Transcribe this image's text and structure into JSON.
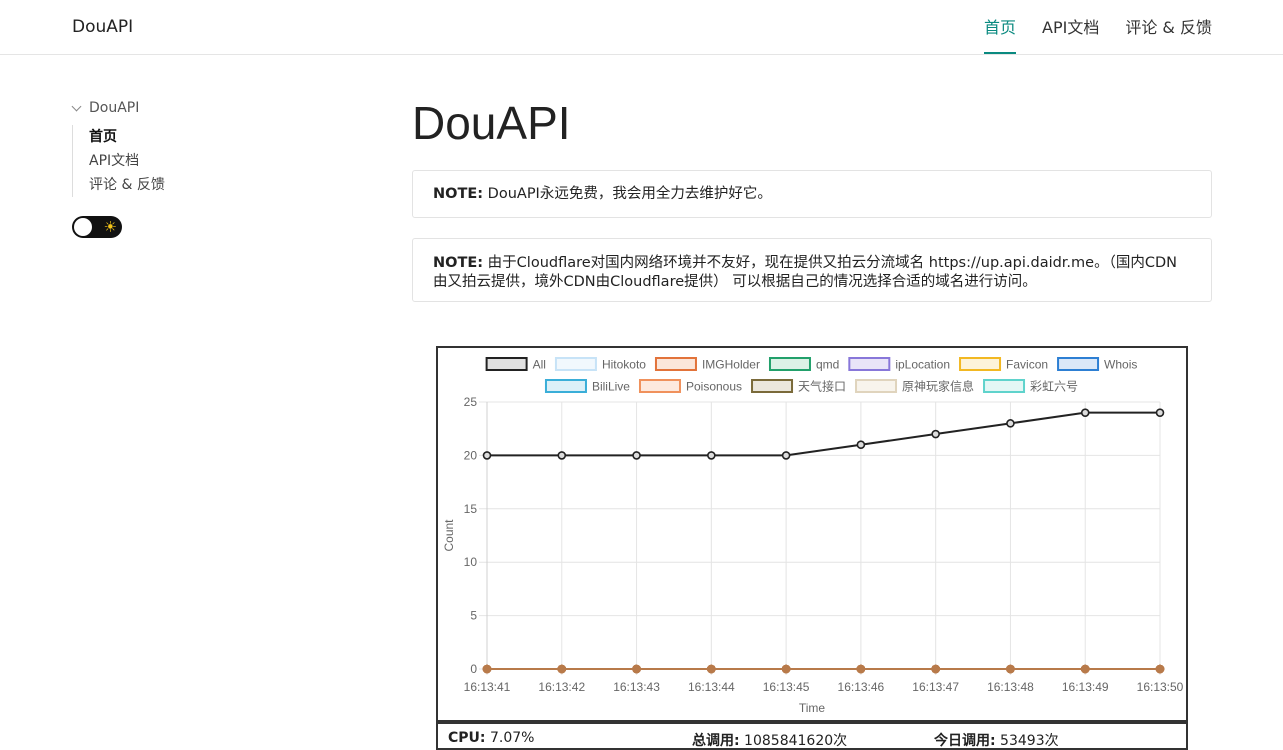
{
  "header": {
    "brand": "DouAPI",
    "nav": [
      {
        "label": "首页",
        "active": true
      },
      {
        "label": "API文档",
        "active": false
      },
      {
        "label": "评论 & 反馈",
        "active": false
      }
    ]
  },
  "sidebar": {
    "section": "DouAPI",
    "items": [
      {
        "label": "首页",
        "active": true
      },
      {
        "label": "API文档",
        "active": false
      },
      {
        "label": "评论 & 反馈",
        "active": false
      }
    ],
    "theme_toggle": {
      "icon": "sun-icon",
      "glyph": "☀"
    }
  },
  "main": {
    "title": "DouAPI",
    "notes": [
      {
        "label": "NOTE:",
        "text": " DouAPI永远免费，我会用全力去维护好它。"
      },
      {
        "label": "NOTE:",
        "text": " 由于Cloudflare对国内网络环境并不友好，现在提供又拍云分流域名 https://up.api.daidr.me。（国内CDN由又拍云提供，境外CDN由Cloudflare提供） 可以根据自己的情况选择合适的域名进行访问。"
      }
    ],
    "stats": [
      {
        "label": "CPU:",
        "value": " 7.07%"
      },
      {
        "label": "总调用:",
        "value": " 1085841620次"
      },
      {
        "label": "今日调用:",
        "value": " 53493次"
      }
    ]
  },
  "chart_data": {
    "type": "line",
    "xlabel": "Time",
    "ylabel": "Count",
    "ylim": [
      0,
      25
    ],
    "yticks": [
      0,
      5,
      10,
      15,
      20,
      25
    ],
    "grid": true,
    "legend_position": "top",
    "x": [
      "16:13:41",
      "16:13:42",
      "16:13:43",
      "16:13:44",
      "16:13:45",
      "16:13:46",
      "16:13:47",
      "16:13:48",
      "16:13:49",
      "16:13:50"
    ],
    "series": [
      {
        "name": "All",
        "color": "#222222",
        "fill": "#e0e0e0",
        "values": [
          20,
          20,
          20,
          20,
          20,
          21,
          22,
          23,
          24,
          24
        ]
      },
      {
        "name": "Hitokoto",
        "color": "#c7e3f7",
        "fill": "#f1f8fd",
        "values": [
          0,
          0,
          0,
          0,
          0,
          0,
          0,
          0,
          0,
          0
        ]
      },
      {
        "name": "IMGHolder",
        "color": "#e2733a",
        "fill": "#fbe6da",
        "values": [
          0,
          0,
          0,
          0,
          0,
          0,
          0,
          0,
          0,
          0
        ]
      },
      {
        "name": "qmd",
        "color": "#22a06b",
        "fill": "#dcf1e6",
        "values": [
          0,
          0,
          0,
          0,
          0,
          0,
          0,
          0,
          0,
          0
        ]
      },
      {
        "name": "ipLocation",
        "color": "#8877d9",
        "fill": "#e9e5f8",
        "values": [
          0,
          0,
          0,
          0,
          0,
          0,
          0,
          0,
          0,
          0
        ]
      },
      {
        "name": "Favicon",
        "color": "#f2b822",
        "fill": "#fdf3d9",
        "values": [
          0,
          0,
          0,
          0,
          0,
          0,
          0,
          0,
          0,
          0
        ]
      },
      {
        "name": "Whois",
        "color": "#2d7fd3",
        "fill": "#dbe8f8",
        "values": [
          0,
          0,
          0,
          0,
          0,
          0,
          0,
          0,
          0,
          0
        ]
      },
      {
        "name": "BiliLive",
        "color": "#3aaed8",
        "fill": "#dcf0f8",
        "values": [
          0,
          0,
          0,
          0,
          0,
          0,
          0,
          0,
          0,
          0
        ]
      },
      {
        "name": "Poisonous",
        "color": "#f0915c",
        "fill": "#fde9de",
        "values": [
          0,
          0,
          0,
          0,
          0,
          0,
          0,
          0,
          0,
          0
        ]
      },
      {
        "name": "天气接口",
        "color": "#7a6a3a",
        "fill": "#ebe7dd",
        "values": [
          0,
          0,
          0,
          0,
          0,
          0,
          0,
          0,
          0,
          0
        ]
      },
      {
        "name": "原神玩家信息",
        "color": "#e0d4bd",
        "fill": "#f8f4ec",
        "values": [
          0,
          0,
          0,
          0,
          0,
          0,
          0,
          0,
          0,
          0
        ]
      },
      {
        "name": "彩虹六号",
        "color": "#5fd3cc",
        "fill": "#e3f7f5",
        "values": [
          0,
          0,
          0,
          0,
          0,
          0,
          0,
          0,
          0,
          0
        ]
      }
    ],
    "zero_line_color": "#b87a4a"
  }
}
